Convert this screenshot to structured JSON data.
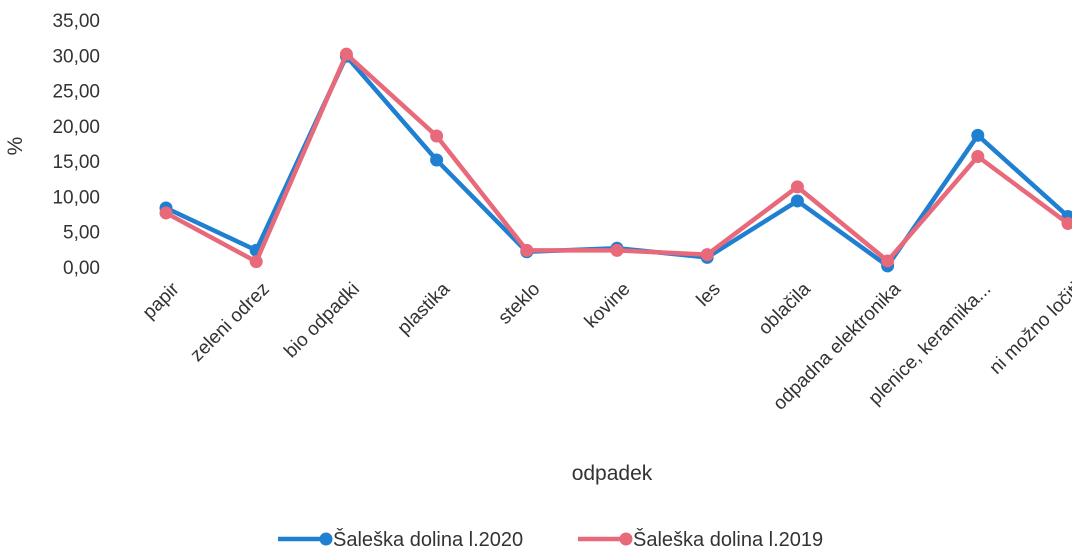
{
  "chart_data": {
    "type": "line",
    "xlabel": "odpadek",
    "ylabel": "%",
    "ylim": [
      0,
      35
    ],
    "yticks": [
      "0,00",
      "5,00",
      "10,00",
      "15,00",
      "20,00",
      "25,00",
      "30,00",
      "35,00"
    ],
    "categories": [
      "papir",
      "zeleni odrez",
      "bio odpadki",
      "plastika",
      "steklo",
      "kovine",
      "les",
      "oblačila",
      "odpadna elektronika",
      "plenice, keramika...",
      "ni možno ločiti"
    ],
    "series": [
      {
        "name": "Šaleška dolina l.2020",
        "color": "#1f7fd1",
        "values": [
          8.5,
          2.5,
          30.0,
          15.3,
          2.3,
          2.8,
          1.5,
          9.5,
          0.3,
          18.8,
          7.3
        ]
      },
      {
        "name": "Šaleška dolina l.2019",
        "color": "#e8697a",
        "values": [
          7.8,
          0.9,
          30.3,
          18.7,
          2.5,
          2.5,
          1.9,
          11.5,
          1.0,
          15.8,
          6.3
        ]
      }
    ],
    "grid": false,
    "legend": "bottom"
  }
}
